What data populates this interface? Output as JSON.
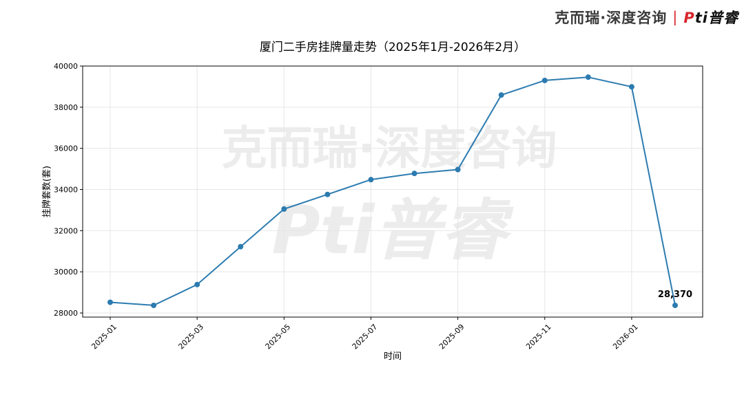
{
  "brand": {
    "name_left": "克而瑞·深度咨询",
    "separator": "|",
    "name_right_accent": "P",
    "name_right_rest": "ti普睿"
  },
  "watermark": {
    "line1": "克而瑞·深度咨询",
    "line2": "Pti普睿"
  },
  "colors": {
    "series": "#2c7bb0",
    "axis": "#000000",
    "grid": "#e6e6e6",
    "brand_red": "#d7262c"
  },
  "chart_data": {
    "type": "line",
    "title": "厦门二手房挂牌量走势（2025年1月-2026年2月）",
    "xlabel": "时间",
    "ylabel": "挂牌套数(套)",
    "x": [
      "2025-01",
      "2025-02",
      "2025-03",
      "2025-04",
      "2025-05",
      "2025-06",
      "2025-07",
      "2025-08",
      "2025-09",
      "2025-10",
      "2025-11",
      "2025-12",
      "2026-01",
      "2026-02"
    ],
    "xticks": [
      "2025-01",
      "2025-03",
      "2025-05",
      "2025-07",
      "2025-09",
      "2025-11",
      "2026-01"
    ],
    "values": [
      28520,
      28370,
      29380,
      31220,
      33050,
      33760,
      34480,
      34780,
      34970,
      38590,
      39300,
      39460,
      38990,
      28370
    ],
    "yticks": [
      28000,
      30000,
      32000,
      34000,
      36000,
      38000,
      40000
    ],
    "ylim": [
      27800,
      40000
    ],
    "grid": true,
    "annotation": {
      "label": "28,370",
      "index": 13
    }
  }
}
